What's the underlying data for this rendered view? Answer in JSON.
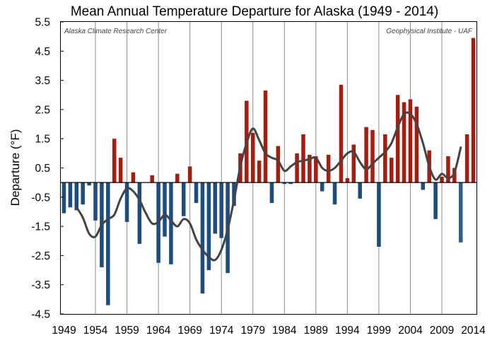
{
  "chart_data": {
    "type": "bar",
    "title": "Mean Annual Temperature Departure for Alaska (1949 - 2014)",
    "xlabel": "",
    "ylabel": "Departure (°F)",
    "ylim": [
      -4.5,
      5.5
    ],
    "y_ticks": [
      "5.5",
      "4.5",
      "3.5",
      "2.5",
      "1.5",
      "0.5",
      "-0.5",
      "-1.5",
      "-2.5",
      "-3.5",
      "-4.5"
    ],
    "x_ticks": [
      "1949",
      "1954",
      "1959",
      "1964",
      "1969",
      "1974",
      "1979",
      "1984",
      "1989",
      "1994",
      "1999",
      "2004",
      "2009",
      "2014"
    ],
    "x_range": [
      1948.5,
      2014.5
    ],
    "annotations": {
      "left": "Alaska Climate Research Center",
      "right": "Geophysical Institute - UAF"
    },
    "colors": {
      "positive": "#a61c0e",
      "negative": "#1d4c7f",
      "negative_recent": "#2c5e91",
      "smooth_line": "#444444",
      "gridline": "#8c8c8c"
    },
    "series": [
      {
        "type": "bar",
        "x": [
          1949,
          1950,
          1951,
          1952,
          1953,
          1954,
          1955,
          1956,
          1957,
          1958,
          1959,
          1960,
          1961,
          1962,
          1963,
          1964,
          1965,
          1966,
          1967,
          1968,
          1969,
          1970,
          1971,
          1972,
          1973,
          1974,
          1975,
          1976,
          1977,
          1978,
          1979,
          1980,
          1981,
          1982,
          1983,
          1984,
          1985,
          1986,
          1987,
          1988,
          1989,
          1990,
          1991,
          1992,
          1993,
          1994,
          1995,
          1996,
          1997,
          1998,
          1999,
          2000,
          2001,
          2002,
          2003,
          2004,
          2005,
          2006,
          2007,
          2008,
          2009,
          2010,
          2011,
          2012,
          2013,
          2014
        ],
        "values": [
          -1.05,
          -0.85,
          -0.95,
          -0.75,
          -0.1,
          -1.3,
          -2.9,
          -4.2,
          1.5,
          0.85,
          -1.35,
          0.35,
          -2.1,
          0.0,
          0.25,
          -2.75,
          -1.85,
          -2.8,
          0.3,
          -1.15,
          0.55,
          -0.7,
          -3.8,
          -3.0,
          -1.75,
          -1.9,
          -3.1,
          -0.8,
          1.0,
          2.8,
          1.7,
          0.75,
          3.15,
          -0.7,
          1.25,
          -0.05,
          -0.05,
          1.0,
          1.65,
          0.95,
          0.9,
          -0.3,
          0.95,
          -0.75,
          3.35,
          0.15,
          1.3,
          -0.55,
          1.9,
          1.8,
          -2.2,
          1.65,
          0.85,
          3.0,
          2.75,
          2.85,
          2.6,
          -0.25,
          1.1,
          -1.25,
          0.2,
          0.9,
          0.5,
          -2.05,
          1.65,
          4.95
        ]
      },
      {
        "type": "line",
        "name": "",
        "x": [
          1951,
          1952,
          1953,
          1954,
          1955,
          1956,
          1957,
          1958,
          1959,
          1960,
          1961,
          1962,
          1963,
          1964,
          1965,
          1966,
          1967,
          1968,
          1969,
          1970,
          1971,
          1972,
          1973,
          1974,
          1975,
          1976,
          1977,
          1978,
          1979,
          1980,
          1981,
          1982,
          1983,
          1984,
          1985,
          1986,
          1987,
          1988,
          1989,
          1990,
          1991,
          1992,
          1993,
          1994,
          1995,
          1996,
          1997,
          1998,
          1999,
          2000,
          2001,
          2002,
          2003,
          2004,
          2005,
          2006,
          2007,
          2008,
          2009,
          2010,
          2011,
          2012
        ],
        "values": [
          -0.85,
          -1.2,
          -1.75,
          -1.85,
          -1.45,
          -1.25,
          -1.1,
          -0.55,
          -0.2,
          -0.3,
          -0.6,
          -1.05,
          -1.4,
          -1.35,
          -1.1,
          -1.3,
          -1.5,
          -1.25,
          -1.4,
          -1.95,
          -2.3,
          -2.55,
          -2.65,
          -2.3,
          -1.6,
          -0.6,
          0.55,
          1.35,
          1.85,
          1.45,
          1.0,
          0.85,
          0.75,
          0.4,
          0.55,
          0.7,
          0.75,
          0.8,
          0.85,
          0.5,
          0.4,
          0.5,
          0.75,
          1.0,
          1.05,
          0.7,
          0.45,
          0.65,
          0.85,
          1.05,
          1.35,
          1.9,
          2.35,
          2.35,
          2.0,
          1.35,
          0.55,
          0.1,
          0.3,
          0.15,
          0.35,
          1.2
        ]
      }
    ]
  }
}
